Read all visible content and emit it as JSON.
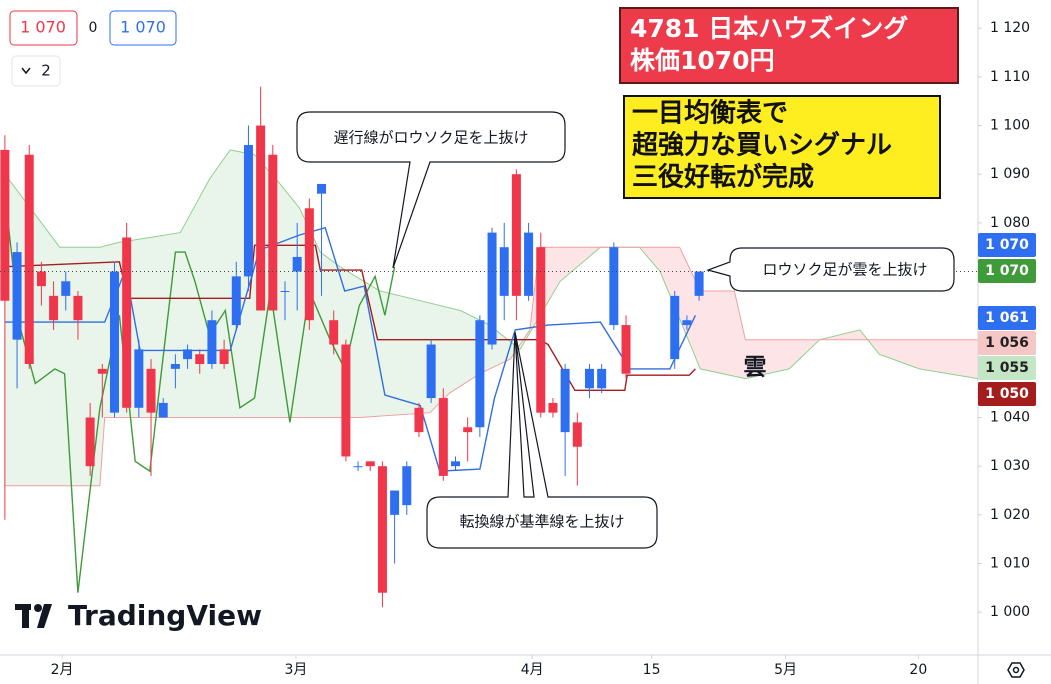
{
  "chart_data": {
    "type": "candlestick",
    "header": {
      "sell": {
        "value": 1070,
        "label": "1 070"
      },
      "spread": 0,
      "buy": {
        "value": 1070,
        "label": "1 070"
      },
      "indicator_count": 2
    },
    "title_lines": [
      "4781 日本ハウズイング",
      "株価1070円"
    ],
    "signal_lines": [
      "一目均衡表で",
      "超強力な買いシグナル",
      "三役好転が完成"
    ],
    "annotations": [
      "遅行線がロウソク足を上抜け",
      "ロウソク足が雲を上抜け",
      "転換線が基準線を上抜け"
    ],
    "cloud_label": "雲",
    "watermark": "TradingView",
    "xlim": [
      -0.4,
      79.9
    ],
    "ylim": [
      991.2,
      1125.8
    ],
    "xticks": [
      {
        "value": 4.7,
        "label": "2月"
      },
      {
        "value": 23.9,
        "label": "3月"
      },
      {
        "value": 43.3,
        "label": "4月"
      },
      {
        "value": 53.1,
        "label": "15"
      },
      {
        "value": 64.1,
        "label": "5月"
      },
      {
        "value": 75.0,
        "label": "20"
      }
    ],
    "yticks": [
      {
        "value": 1120,
        "label": "1 120"
      },
      {
        "value": 1110,
        "label": "1 110"
      },
      {
        "value": 1100,
        "label": "1 100"
      },
      {
        "value": 1090,
        "label": "1 090"
      },
      {
        "value": 1080,
        "label": "1 080"
      },
      {
        "value": 1070,
        "label": "1 070"
      },
      {
        "value": 1060,
        "label": "1 060"
      },
      {
        "value": 1050,
        "label": "1 050"
      },
      {
        "value": 1040,
        "label": "1 040"
      },
      {
        "value": 1030,
        "label": "1 030"
      },
      {
        "value": 1020,
        "label": "1 020"
      },
      {
        "value": 1010,
        "label": "1 010"
      },
      {
        "value": 1000,
        "label": "1 000"
      }
    ],
    "up_color": "#2e6ff2",
    "down_color": "#f0364a",
    "candles": {
      "x": [
        0,
        1,
        2,
        3,
        4,
        5,
        6,
        7,
        8,
        9,
        10,
        11,
        12,
        13,
        14,
        15,
        16,
        17,
        18,
        19,
        20,
        21,
        22,
        23,
        24,
        25,
        26,
        27,
        28,
        29,
        30,
        31,
        32,
        33,
        34,
        35,
        36,
        37,
        38,
        39,
        40,
        41,
        42,
        43,
        44,
        45,
        46,
        47,
        48,
        49,
        50,
        51,
        55,
        56,
        57
      ],
      "open": [
        1095,
        1056,
        1094,
        1070,
        1065,
        1065,
        1065,
        1040,
        1050,
        1041,
        1077,
        1042,
        1050,
        1040,
        1050,
        1052,
        1053,
        1051,
        1054,
        1059,
        1069,
        1100,
        1094,
        1066,
        1070,
        1083,
        1086,
        1060,
        1055,
        1030,
        1031,
        1030,
        1020,
        1022,
        1042,
        1044,
        1044,
        1030,
        1038,
        1038,
        1055,
        1065,
        1090,
        1065,
        1075,
        1043,
        1037,
        1039,
        1046,
        1046,
        1059,
        1059,
        1052,
        1059,
        1065
      ],
      "high": [
        1098,
        1076,
        1096,
        1072,
        1068,
        1070,
        1066,
        1043,
        1051,
        1072,
        1080,
        1056,
        1052,
        1044,
        1053,
        1055,
        1054,
        1062,
        1056,
        1072,
        1100,
        1108,
        1096,
        1068,
        1080,
        1085,
        1088,
        1062,
        1056,
        1031,
        1031,
        1031,
        1025,
        1031,
        1043,
        1056,
        1046,
        1032,
        1040,
        1061,
        1079,
        1080,
        1091,
        1080,
        1078,
        1044,
        1051,
        1041,
        1051,
        1051,
        1076,
        1061,
        1066,
        1061,
        1070
      ],
      "low": [
        1019,
        1046,
        1050,
        1063,
        1058,
        1062,
        1056,
        1028,
        1040,
        1040,
        1041,
        1040,
        1028,
        1040,
        1046,
        1050,
        1049,
        1050,
        1050,
        1058,
        1066,
        1062,
        1062,
        1060,
        1062,
        1058,
        1065,
        1053,
        1031,
        1029,
        1029,
        1001,
        1010,
        1020,
        1036,
        1043,
        1027,
        1029,
        1031,
        1036,
        1054,
        1060,
        1060,
        1064,
        1040,
        1040,
        1028,
        1026,
        1044,
        1045,
        1058,
        1048,
        1050,
        1058,
        1064
      ],
      "close": [
        1064,
        1074,
        1051,
        1067,
        1060,
        1068,
        1060,
        1030,
        1049,
        1070,
        1042,
        1054,
        1041,
        1043,
        1051,
        1054,
        1051,
        1060,
        1051,
        1069,
        1096,
        1062,
        1062,
        1066,
        1073,
        1060,
        1088,
        1055,
        1032,
        1030,
        1030,
        1004,
        1025,
        1030,
        1037,
        1055,
        1028,
        1031,
        1037,
        1060,
        1078,
        1075,
        1065,
        1078,
        1041,
        1041,
        1050,
        1034,
        1050,
        1050,
        1075,
        1049,
        1065,
        1060,
        1070
      ]
    },
    "cloud_colors": [
      "rgba(76,175,80,0.12)",
      "rgba(242,54,69,0.13)"
    ],
    "lines": [
      {
        "color": "#8fd08f",
        "x": [
          0,
          4.5,
          7.8,
          9.4,
          11.9,
          14.4,
          16.8,
          18.5,
          20.5,
          22.6,
          24.2,
          25.9,
          27.5,
          30.8,
          34.1,
          37.4,
          39.8,
          42.3,
          45.6,
          48.9,
          52.1,
          53.8,
          57.1,
          60.8,
          64.4,
          66.9,
          70.2,
          71.8,
          75.1,
          79.9
        ],
        "values": [
          1090,
          1075,
          1075,
          1076,
          1077,
          1078,
          1089,
          1095,
          1094,
          1088,
          1083,
          1074,
          1071,
          1066,
          1064,
          1062,
          1059,
          1054,
          1068,
          1075,
          1075,
          1070,
          1050,
          1048,
          1050,
          1056,
          1058,
          1053,
          1050,
          1048
        ]
      },
      {
        "color": "#f0a0a0",
        "x": [
          0,
          7.8,
          8.2,
          29.1,
          34.9,
          36.5,
          39,
          41.5,
          43.1,
          43.9,
          55.4,
          57.1,
          59.9,
          60.8,
          79.9
        ],
        "values": [
          1026,
          1026,
          1040,
          1040,
          1041,
          1045,
          1049,
          1052,
          1058,
          1075,
          1075,
          1066,
          1066,
          1056,
          1056
        ]
      },
      {
        "color": "#3f9a3a",
        "x": [
          0,
          1.2,
          2.5,
          4.1,
          4.9,
          6.0,
          7.8,
          9.4,
          10.7,
          11.9,
          14,
          14.8,
          15.6,
          16.8,
          18.1,
          19.3,
          20.5,
          21.8,
          23.4,
          25,
          26.7,
          27.9,
          29.1,
          30.4,
          31.2,
          32
        ],
        "values": [
          1086,
          1059,
          1047,
          1050,
          1049,
          1004,
          1042,
          1061,
          1031,
          1029,
          1074,
          1074,
          1068,
          1057,
          1062,
          1042,
          1044,
          1066,
          1039,
          1066,
          1056,
          1050,
          1063,
          1069,
          1061,
          1071
        ]
      },
      {
        "color": "#a51c1c",
        "x": [
          0,
          9.4,
          10.1,
          20.1,
          20.5,
          25.5,
          25.9,
          29.3,
          30.6,
          43.9,
          44.6,
          46.8,
          50.9,
          51.1,
          56.2,
          56.7
        ],
        "values": [
          1071,
          1072,
          1064.5,
          1064.5,
          1075.4,
          1075.4,
          1070.3,
          1070.3,
          1056,
          1056,
          1055,
          1045.6,
          1045.6,
          1048.7,
          1048.7,
          1050
        ]
      },
      {
        "color": "#2f6fe0",
        "x": [
          0,
          8.2,
          9.9,
          11.1,
          18.5,
          20.9,
          24.2,
          26.3,
          27.9,
          29.5,
          31.2,
          34.1,
          35.7,
          39,
          40.2,
          41.9,
          44.6,
          48.9,
          51.3,
          54.6,
          56.7
        ],
        "values": [
          1059.6,
          1059.6,
          1070.3,
          1053.8,
          1053.8,
          1074.4,
          1077.5,
          1079,
          1066,
          1067,
          1044.6,
          1042.5,
          1029,
          1029.4,
          1044,
          1058,
          1059,
          1059.6,
          1050,
          1050,
          1061
        ]
      }
    ],
    "price_tags": [
      {
        "value": 1070,
        "label": "1 070",
        "color": "#2e6ff2",
        "text_color": "#ffffff"
      },
      {
        "value": 1070,
        "label": "1 070",
        "color": "#3f9a3a",
        "text_color": "#ffffff"
      },
      {
        "value": 1061,
        "label": "1 061",
        "color": "#2e6ff2",
        "text_color": "#ffffff"
      },
      {
        "value": 1056,
        "label": "1 056",
        "color": "#f5c6c6",
        "text_color": "#222222"
      },
      {
        "value": 1055,
        "label": "1 055",
        "color": "#c4e6c4",
        "text_color": "#222222"
      },
      {
        "value": 1050,
        "label": "1 050",
        "color": "#a51c1c",
        "text_color": "#ffffff"
      }
    ]
  }
}
